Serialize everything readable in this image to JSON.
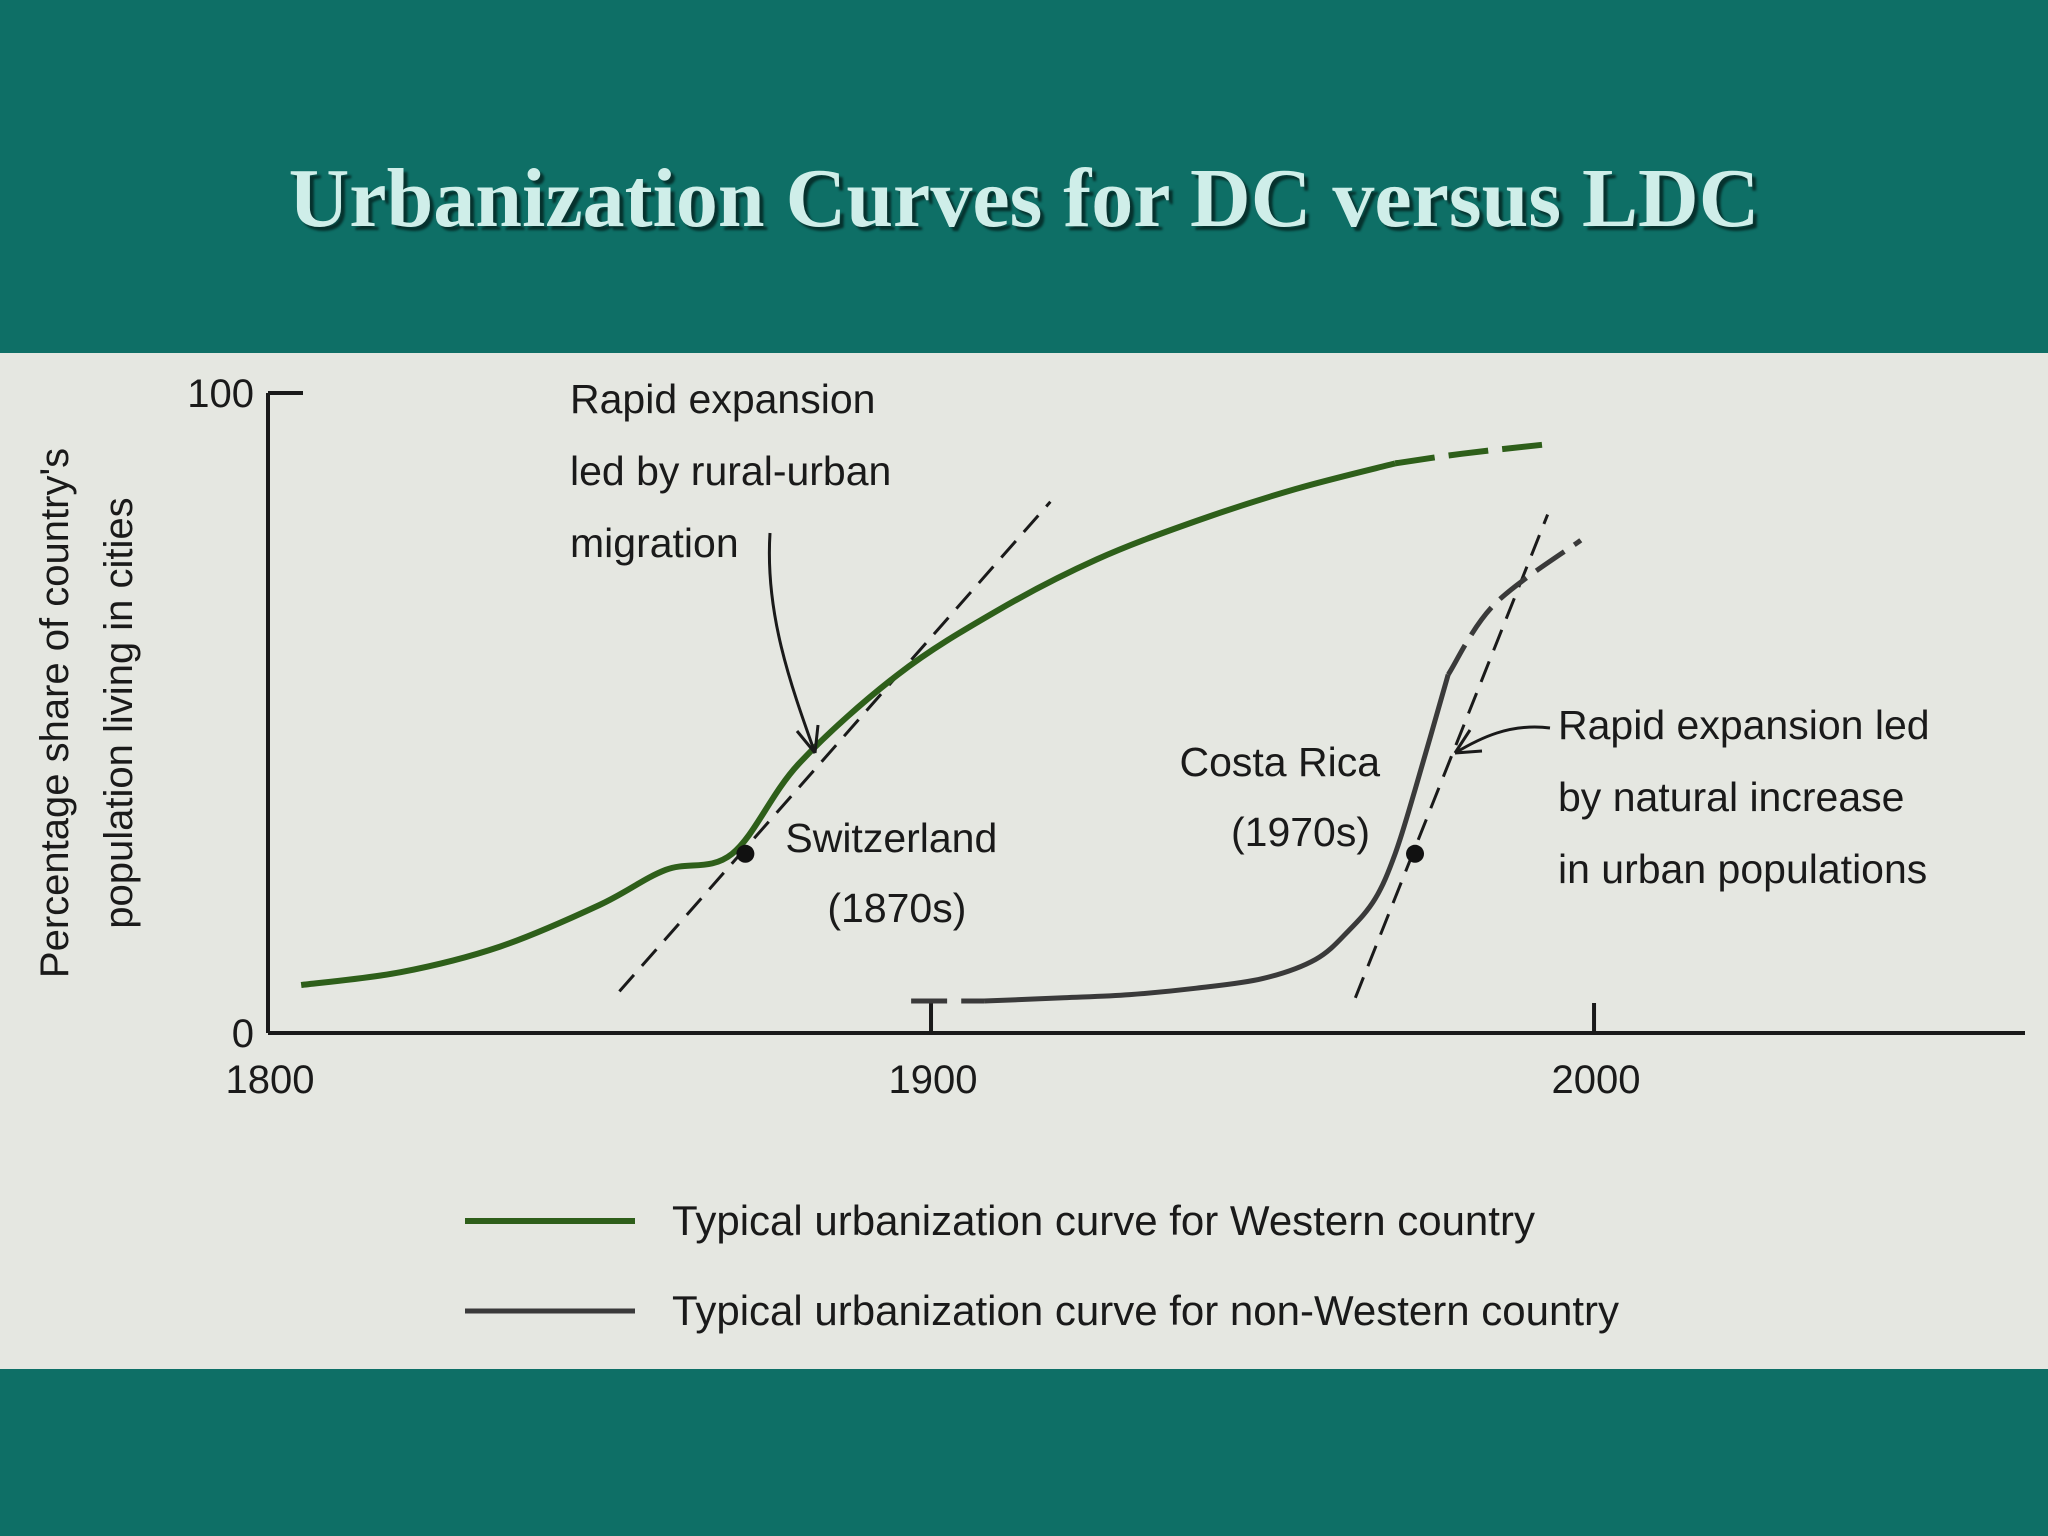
{
  "slide": {
    "title": "Urbanization Curves for DC versus LDC"
  },
  "colors": {
    "background": "#0e6f66",
    "title": "#cfeee9",
    "panel": "#e5e7e1",
    "western": "#2e5f1a",
    "non_western": "#3a3a3a"
  },
  "chart_data": {
    "type": "line",
    "title": "",
    "xlabel": "",
    "ylabel_lines": [
      "Percentage share of country's",
      "population living in cities"
    ],
    "xlim": [
      1800,
      2065
    ],
    "ylim": [
      0,
      100
    ],
    "xticks": [
      "1800",
      "1900",
      "2000"
    ],
    "yticks": [
      "0",
      "100"
    ],
    "grid": false,
    "series": [
      {
        "name": "Typical urbanization curve for Western country",
        "style": "solid",
        "x": [
          1805,
          1820,
          1835,
          1850,
          1860,
          1870,
          1880,
          1895,
          1910,
          1925,
          1940,
          1955,
          1970
        ],
        "y": [
          7.5,
          9.5,
          13.5,
          20,
          25.5,
          28,
          42,
          56,
          66,
          74,
          80,
          85,
          89
        ],
        "dashed_extension": {
          "x": [
            1970,
            1980,
            1993
          ],
          "y": [
            89,
            90.5,
            92
          ]
        }
      },
      {
        "name": "Typical urbanization curve for non-Western country",
        "style": "solid",
        "x": [
          1908,
          1920,
          1930,
          1940,
          1950,
          1958,
          1963,
          1967,
          1970,
          1973,
          1978
        ],
        "y": [
          5,
          5.5,
          6,
          7,
          8.5,
          11.5,
          16,
          21,
          28,
          38,
          56
        ],
        "dashed_extension_start": {
          "x": [
            1897,
            1908
          ],
          "y": [
            5,
            5
          ]
        },
        "dashed_extension_end": {
          "x": [
            1978,
            1985,
            1998
          ],
          "y": [
            56,
            67,
            77
          ]
        }
      }
    ],
    "tangents": [
      {
        "label": "Switzerland tangent",
        "x": [
          1853,
          1918
        ],
        "y": [
          6.5,
          83
        ]
      },
      {
        "label": "Costa Rica tangent",
        "x": [
          1964,
          1993
        ],
        "y": [
          5.5,
          81
        ]
      }
    ],
    "points": [
      {
        "x": 1872,
        "y": 28,
        "label": [
          "Switzerland",
          "(1870s)"
        ]
      },
      {
        "x": 1973,
        "y": 28,
        "label": [
          "Costa Rica",
          "(1970s)"
        ]
      }
    ],
    "annotations": [
      {
        "lines": [
          "Rapid expansion",
          "led by rural-urban",
          "migration"
        ]
      },
      {
        "lines": [
          "Rapid expansion led",
          "by natural increase",
          "in urban populations"
        ]
      }
    ],
    "legend": {
      "placement": "bottom",
      "items": [
        "Typical urbanization curve for Western country",
        "Typical urbanization curve for non-Western country"
      ]
    }
  }
}
